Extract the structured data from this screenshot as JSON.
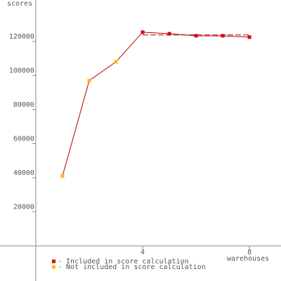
{
  "chart_data": {
    "type": "line",
    "y_label": "scores",
    "x_label": "warehouses",
    "x": [
      1,
      2,
      3,
      4,
      5,
      6,
      7,
      8
    ],
    "series": [
      {
        "name": "- Included in score calculation",
        "color": "#dd0000",
        "values": [
          null,
          null,
          null,
          125400,
          124500,
          123300,
          123300,
          122500
        ]
      },
      {
        "name": "- Not included in score calculation",
        "color": "#ffb800",
        "values": [
          41000,
          97000,
          108000,
          null,
          null,
          null,
          null,
          null
        ]
      }
    ],
    "line_color": "#aa0000",
    "reference_line": {
      "x": [
        4,
        8
      ],
      "value": 123800
    },
    "xlim": [
      -1.34,
      9.18
    ],
    "xticks": [
      4,
      8
    ],
    "ylim": [
      -20600,
      144300
    ],
    "yticks": [
      20000,
      40000,
      60000,
      80000,
      100000,
      120000
    ]
  }
}
